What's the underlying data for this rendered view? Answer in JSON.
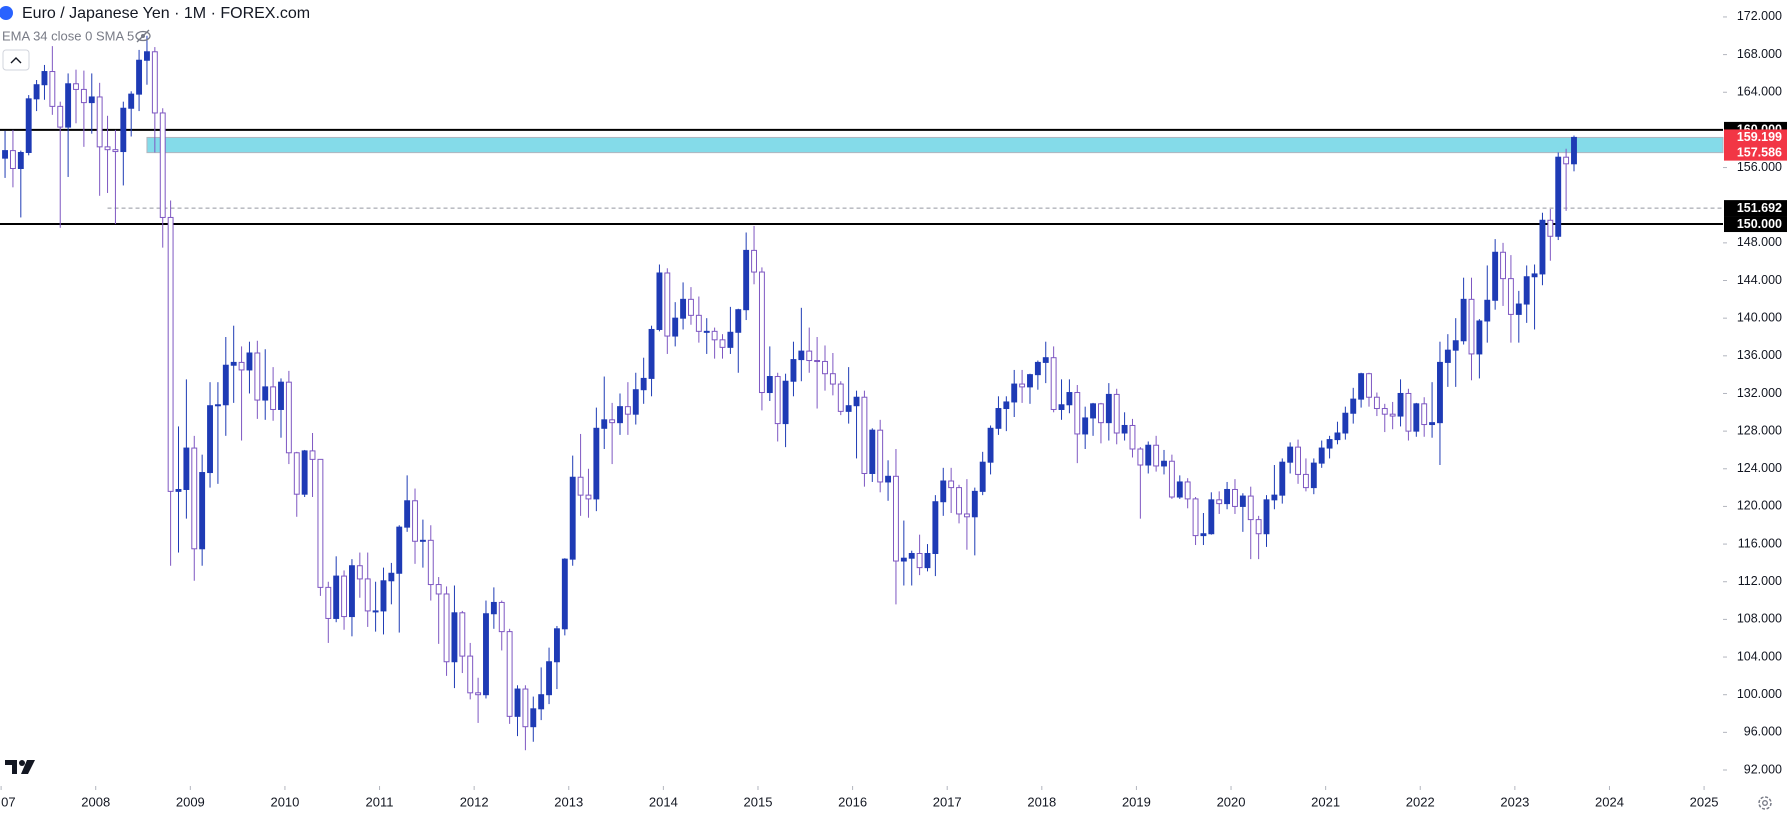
{
  "chart_data": {
    "type": "candlestick",
    "title": "Euro / Japanese Yen · 1M · FOREX.com",
    "subtitle": "EMA 34 close 0 SMA 5",
    "up_color": "#1e3bb5",
    "down_color": "#7e57c2",
    "xlim": [
      -0.64,
      217.9
    ],
    "ylim": [
      90.3,
      173.8
    ],
    "xticks": [
      {
        "value": -0.5,
        "label": "07"
      },
      {
        "value": 11.5,
        "label": "2008"
      },
      {
        "value": 23.5,
        "label": "2009"
      },
      {
        "value": 35.5,
        "label": "2010"
      },
      {
        "value": 47.5,
        "label": "2011"
      },
      {
        "value": 59.5,
        "label": "2012"
      },
      {
        "value": 71.5,
        "label": "2013"
      },
      {
        "value": 83.5,
        "label": "2014"
      },
      {
        "value": 95.5,
        "label": "2015"
      },
      {
        "value": 107.5,
        "label": "2016"
      },
      {
        "value": 119.5,
        "label": "2017"
      },
      {
        "value": 131.5,
        "label": "2018"
      },
      {
        "value": 143.5,
        "label": "2019"
      },
      {
        "value": 155.5,
        "label": "2020"
      },
      {
        "value": 167.5,
        "label": "2021"
      },
      {
        "value": 179.5,
        "label": "2022"
      },
      {
        "value": 191.5,
        "label": "2023"
      },
      {
        "value": 203.5,
        "label": "2024"
      },
      {
        "value": 215.5,
        "label": "2025"
      }
    ],
    "yticks": [
      {
        "value": 172,
        "label": "172.000"
      },
      {
        "value": 168,
        "label": "168.000"
      },
      {
        "value": 164,
        "label": "164.000"
      },
      {
        "value": 156,
        "label": "156.000"
      },
      {
        "value": 148,
        "label": "148.000"
      },
      {
        "value": 144,
        "label": "144.000"
      },
      {
        "value": 140,
        "label": "140.000"
      },
      {
        "value": 136,
        "label": "136.000"
      },
      {
        "value": 132,
        "label": "132.000"
      },
      {
        "value": 128,
        "label": "128.000"
      },
      {
        "value": 124,
        "label": "124.000"
      },
      {
        "value": 120,
        "label": "120.000"
      },
      {
        "value": 116,
        "label": "116.000"
      },
      {
        "value": 112,
        "label": "112.000"
      },
      {
        "value": 108,
        "label": "108.000"
      },
      {
        "value": 104,
        "label": "104.000"
      },
      {
        "value": 100,
        "label": "100.000"
      },
      {
        "value": 96,
        "label": "96.000"
      },
      {
        "value": 92,
        "label": "92.000"
      }
    ],
    "levels": [
      {
        "value": 160,
        "label": "160.000",
        "color": "#000000"
      },
      {
        "value": 150,
        "label": "150.000",
        "color": "#000000"
      }
    ],
    "dashed_level": {
      "value": 151.692,
      "start": 13,
      "color": "#9598a1"
    },
    "zone": {
      "low": 157.586,
      "high": 159.199,
      "start": 18,
      "color": "#84dbe9",
      "label_color": "#f23645"
    },
    "x": [
      0,
      1,
      2,
      3,
      4,
      5,
      6,
      7,
      8,
      9,
      10,
      11,
      12,
      13,
      14,
      15,
      16,
      17,
      18,
      19,
      20,
      21,
      22,
      23,
      24,
      25,
      26,
      27,
      28,
      29,
      30,
      31,
      32,
      33,
      34,
      35,
      36,
      37,
      38,
      39,
      40,
      41,
      42,
      43,
      44,
      45,
      46,
      47,
      48,
      49,
      50,
      51,
      52,
      53,
      54,
      55,
      56,
      57,
      58,
      59,
      60,
      61,
      62,
      63,
      64,
      65,
      66,
      67,
      68,
      69,
      70,
      71,
      72,
      73,
      74,
      75,
      76,
      77,
      78,
      79,
      80,
      81,
      82,
      83,
      84,
      85,
      86,
      87,
      88,
      89,
      90,
      91,
      92,
      93,
      94,
      95,
      96,
      97,
      98,
      99,
      100,
      101,
      102,
      103,
      104,
      105,
      106,
      107,
      108,
      109,
      110,
      111,
      112,
      113,
      114,
      115,
      116,
      117,
      118,
      119,
      120,
      121,
      122,
      123,
      124,
      125,
      126,
      127,
      128,
      129,
      130,
      131,
      132,
      133,
      134,
      135,
      136,
      137,
      138,
      139,
      140,
      141,
      142,
      143,
      144,
      145,
      146,
      147,
      148,
      149,
      150,
      151,
      152,
      153,
      154,
      155,
      156,
      157,
      158,
      159,
      160,
      161,
      162,
      163,
      164,
      165,
      166,
      167,
      168,
      169,
      170,
      171,
      172,
      173,
      174,
      175,
      176,
      177,
      178,
      179,
      180,
      181,
      182,
      183,
      184,
      185,
      186,
      187,
      188,
      189,
      190,
      191,
      192,
      193,
      194,
      195,
      196,
      197,
      198,
      199
    ],
    "open": [
      157.0,
      157.8,
      155.9,
      157.6,
      163.3,
      164.8,
      166.2,
      162.5,
      160.3,
      164.9,
      164.3,
      162.9,
      163.5,
      158.2,
      157.9,
      157.7,
      162.3,
      163.8,
      167.4,
      168.3,
      161.8,
      150.7,
      121.6,
      121.8,
      126.2,
      115.5,
      123.6,
      130.7,
      130.8,
      135.0,
      135.3,
      134.5,
      136.3,
      131.3,
      132.7,
      130.3,
      133.2,
      125.7,
      121.3,
      125.9,
      125.0,
      111.4,
      108.1,
      112.6,
      108.3,
      113.7,
      112.3,
      108.9,
      108.9,
      112.1,
      112.9,
      117.8,
      120.6,
      116.3,
      116.4,
      111.7,
      110.7,
      103.5,
      108.7,
      104.1,
      100.2,
      100.0,
      108.6,
      109.8,
      106.7,
      97.7,
      100.6,
      96.6,
      98.5,
      100.0,
      103.5,
      107.0,
      114.4,
      123.1,
      121.2,
      120.8,
      128.3,
      129.2,
      128.9,
      130.6,
      129.8,
      132.4,
      133.6,
      138.8,
      144.8,
      138.1,
      140.0,
      142.0,
      140.3,
      138.6,
      138.6,
      137.7,
      136.9,
      138.5,
      140.9,
      147.2,
      144.9,
      132.1,
      133.8,
      128.8,
      133.3,
      135.6,
      136.5,
      135.5,
      135.4,
      134.1,
      133.0,
      130.1,
      130.7,
      131.6,
      123.5,
      128.1,
      122.6,
      123.2,
      114.2,
      114.5,
      115.0,
      113.5,
      115.0,
      120.5,
      122.7,
      122.0,
      119.2,
      118.9,
      121.6,
      124.7,
      128.3,
      130.4,
      131.1,
      133.0,
      132.7,
      134.0,
      135.3,
      135.8,
      130.3,
      130.8,
      132.1,
      127.7,
      129.4,
      130.9,
      128.9,
      131.9,
      127.8,
      128.6,
      126.1,
      124.4,
      126.5,
      124.3,
      124.8,
      121.0,
      122.6,
      120.8,
      116.9,
      117.1,
      120.7,
      120.3,
      121.8,
      120.0,
      121.1,
      118.6,
      117.1,
      120.7,
      121.2,
      124.7,
      126.3,
      123.4,
      122.0,
      124.6,
      126.2,
      127.1,
      127.8,
      129.9,
      131.4,
      134.1,
      131.6,
      130.4,
      129.8,
      129.6,
      132.0,
      128.0,
      130.9,
      128.7,
      128.9,
      135.3,
      136.6,
      137.6,
      142.0,
      136.2,
      139.7,
      141.9,
      147.0,
      144.2,
      140.4,
      141.5,
      144.4,
      144.7,
      150.4,
      148.7,
      157.1,
      156.4
    ],
    "high": [
      159.9,
      160.0,
      157.8,
      163.7,
      165.3,
      166.9,
      168.9,
      163.0,
      166.0,
      166.4,
      166.3,
      166.0,
      165.0,
      161.5,
      160.0,
      163.0,
      164.1,
      168.5,
      170.0,
      168.8,
      162.3,
      152.5,
      128.5,
      133.5,
      127.5,
      125.5,
      133.2,
      133.2,
      138.0,
      139.2,
      137.0,
      137.5,
      137.6,
      136.7,
      134.8,
      133.6,
      134.4,
      125.8,
      126.0,
      127.8,
      125.0,
      112.0,
      114.7,
      113.2,
      114.4,
      115.1,
      115.1,
      112.0,
      113.5,
      114.0,
      118.0,
      123.3,
      121.9,
      118.6,
      118.0,
      112.5,
      111.5,
      111.6,
      108.9,
      105.5,
      101.8,
      110.0,
      111.4,
      110.0,
      107.0,
      101.0,
      101.0,
      99.8,
      102.9,
      105.0,
      107.3,
      114.5,
      125.4,
      127.7,
      124.0,
      130.5,
      133.8,
      131.0,
      132.0,
      133.2,
      134.2,
      135.8,
      139.2,
      145.7,
      145.3,
      141.7,
      143.8,
      143.3,
      142.3,
      140.0,
      139.0,
      138.3,
      141.2,
      141.0,
      149.1,
      149.8,
      145.4,
      137.0,
      134.2,
      134.1,
      137.5,
      141.1,
      139.0,
      138.0,
      137.1,
      136.3,
      133.3,
      134.8,
      132.3,
      132.3,
      128.3,
      129.2,
      124.9,
      126.1,
      118.5,
      115.3,
      117.0,
      116.0,
      121.2,
      124.1,
      124.1,
      122.3,
      122.9,
      122.0,
      125.8,
      128.6,
      131.7,
      131.7,
      134.5,
      134.5,
      134.1,
      135.5,
      137.5,
      137.0,
      133.5,
      133.5,
      132.9,
      130.6,
      131.0,
      131.0,
      133.1,
      132.5,
      130.0,
      129.3,
      126.3,
      126.9,
      127.5,
      126.0,
      125.5,
      123.3,
      123.0,
      121.0,
      119.3,
      121.5,
      121.6,
      122.6,
      122.9,
      121.4,
      122.1,
      119.0,
      121.2,
      124.4,
      125.1,
      126.8,
      127.1,
      125.1,
      125.1,
      127.0,
      127.5,
      129.0,
      130.6,
      132.6,
      134.2,
      134.2,
      132.1,
      130.9,
      131.1,
      133.5,
      132.5,
      131.0,
      131.6,
      133.2,
      137.5,
      138.3,
      140.0,
      144.3,
      144.3,
      139.9,
      145.6,
      148.4,
      148.0,
      146.7,
      142.9,
      145.6,
      145.7,
      151.2,
      151.6,
      157.6,
      158.0,
      159.4
    ],
    "low": [
      154.9,
      153.9,
      150.7,
      157.3,
      162.0,
      163.2,
      161.6,
      149.6,
      155.0,
      160.7,
      158.2,
      159.6,
      153.0,
      153.3,
      150.0,
      154.1,
      159.3,
      162.0,
      164.8,
      157.6,
      147.5,
      113.7,
      115.1,
      118.7,
      112.1,
      113.7,
      122.0,
      122.4,
      127.5,
      131.0,
      127.0,
      132.0,
      129.3,
      129.2,
      129.1,
      127.3,
      124.5,
      118.9,
      121.0,
      121.0,
      110.5,
      105.5,
      107.7,
      106.9,
      106.2,
      110.3,
      107.2,
      106.7,
      106.4,
      109.6,
      106.6,
      117.3,
      113.9,
      113.5,
      110.0,
      105.4,
      102.0,
      100.7,
      102.3,
      99.5,
      97.0,
      99.6,
      107.0,
      104.7,
      96.9,
      95.6,
      94.1,
      95.0,
      97.3,
      99.0,
      100.6,
      106.3,
      113.7,
      119.0,
      118.8,
      119.5,
      126.1,
      124.5,
      127.6,
      127.6,
      128.7,
      130.9,
      131.7,
      138.6,
      136.2,
      137.0,
      138.8,
      139.3,
      137.4,
      136.2,
      135.7,
      135.7,
      136.2,
      134.2,
      139.8,
      143.6,
      130.2,
      131.2,
      126.9,
      126.3,
      131.7,
      133.3,
      134.2,
      130.4,
      132.3,
      131.8,
      129.7,
      128.8,
      125.1,
      122.1,
      122.6,
      121.5,
      120.6,
      109.6,
      111.6,
      111.6,
      112.7,
      113.1,
      112.6,
      119.0,
      119.3,
      118.2,
      115.4,
      114.8,
      121.2,
      123.4,
      127.6,
      128.0,
      129.5,
      131.0,
      130.9,
      132.4,
      133.1,
      130.0,
      129.2,
      129.9,
      124.6,
      126.1,
      127.5,
      126.7,
      127.0,
      126.6,
      127.0,
      125.2,
      118.7,
      123.5,
      123.7,
      123.4,
      120.8,
      120.8,
      119.8,
      115.9,
      115.9,
      117.0,
      119.2,
      119.7,
      119.2,
      117.3,
      114.4,
      114.4,
      115.7,
      119.7,
      120.3,
      123.5,
      122.4,
      121.6,
      121.3,
      124.1,
      125.1,
      126.6,
      127.1,
      128.8,
      130.5,
      130.6,
      129.6,
      127.9,
      128.2,
      128.5,
      127.0,
      127.4,
      127.4,
      127.3,
      124.4,
      132.7,
      132.7,
      137.2,
      133.4,
      133.6,
      137.4,
      140.9,
      141.3,
      137.4,
      137.4,
      139.5,
      138.8,
      143.5,
      146.1,
      148.3,
      151.4,
      155.6
    ],
    "close": [
      157.8,
      155.9,
      157.6,
      163.3,
      164.8,
      166.2,
      162.5,
      160.3,
      164.9,
      164.3,
      162.9,
      163.5,
      158.2,
      157.9,
      157.7,
      162.3,
      163.8,
      167.4,
      168.3,
      161.8,
      150.7,
      121.6,
      121.8,
      126.2,
      115.5,
      123.6,
      130.7,
      130.8,
      135.0,
      135.3,
      134.5,
      136.3,
      131.3,
      132.7,
      130.3,
      133.2,
      125.7,
      121.3,
      125.9,
      125.0,
      111.4,
      108.1,
      112.6,
      108.3,
      113.7,
      112.3,
      108.9,
      108.9,
      112.1,
      112.9,
      117.8,
      120.6,
      116.3,
      116.4,
      111.7,
      110.7,
      103.5,
      108.7,
      104.1,
      100.2,
      100.0,
      108.6,
      109.8,
      106.7,
      97.7,
      100.6,
      96.6,
      98.5,
      100.0,
      103.5,
      107.0,
      114.4,
      123.1,
      121.2,
      120.8,
      128.3,
      129.2,
      128.9,
      130.6,
      129.8,
      132.4,
      133.6,
      138.8,
      144.8,
      138.1,
      140.0,
      142.0,
      140.3,
      138.6,
      138.6,
      137.7,
      136.9,
      138.5,
      140.9,
      147.2,
      144.9,
      132.1,
      133.8,
      128.8,
      133.3,
      135.6,
      136.5,
      135.5,
      135.4,
      134.1,
      133.0,
      130.1,
      130.7,
      131.6,
      123.5,
      128.1,
      122.6,
      123.2,
      114.2,
      114.5,
      115.0,
      113.5,
      115.0,
      120.5,
      122.7,
      122.0,
      119.2,
      118.9,
      121.6,
      124.7,
      128.3,
      130.4,
      131.1,
      133.0,
      132.7,
      134.0,
      135.3,
      135.8,
      130.3,
      130.8,
      132.1,
      127.7,
      129.4,
      130.9,
      128.9,
      131.9,
      127.8,
      128.6,
      126.1,
      124.4,
      126.5,
      124.3,
      124.8,
      121.0,
      122.6,
      120.8,
      116.9,
      117.1,
      120.7,
      120.3,
      121.8,
      120.0,
      121.1,
      118.6,
      117.1,
      120.7,
      121.2,
      124.7,
      126.3,
      123.4,
      122.0,
      124.6,
      126.2,
      127.1,
      127.8,
      129.9,
      131.4,
      134.1,
      131.6,
      130.4,
      129.8,
      129.6,
      132.0,
      128.0,
      130.9,
      128.7,
      128.9,
      135.3,
      136.6,
      137.6,
      142.0,
      136.2,
      139.7,
      141.9,
      147.0,
      144.2,
      140.4,
      141.5,
      144.4,
      144.7,
      150.4,
      148.7,
      157.1,
      156.4,
      159.2
    ]
  }
}
